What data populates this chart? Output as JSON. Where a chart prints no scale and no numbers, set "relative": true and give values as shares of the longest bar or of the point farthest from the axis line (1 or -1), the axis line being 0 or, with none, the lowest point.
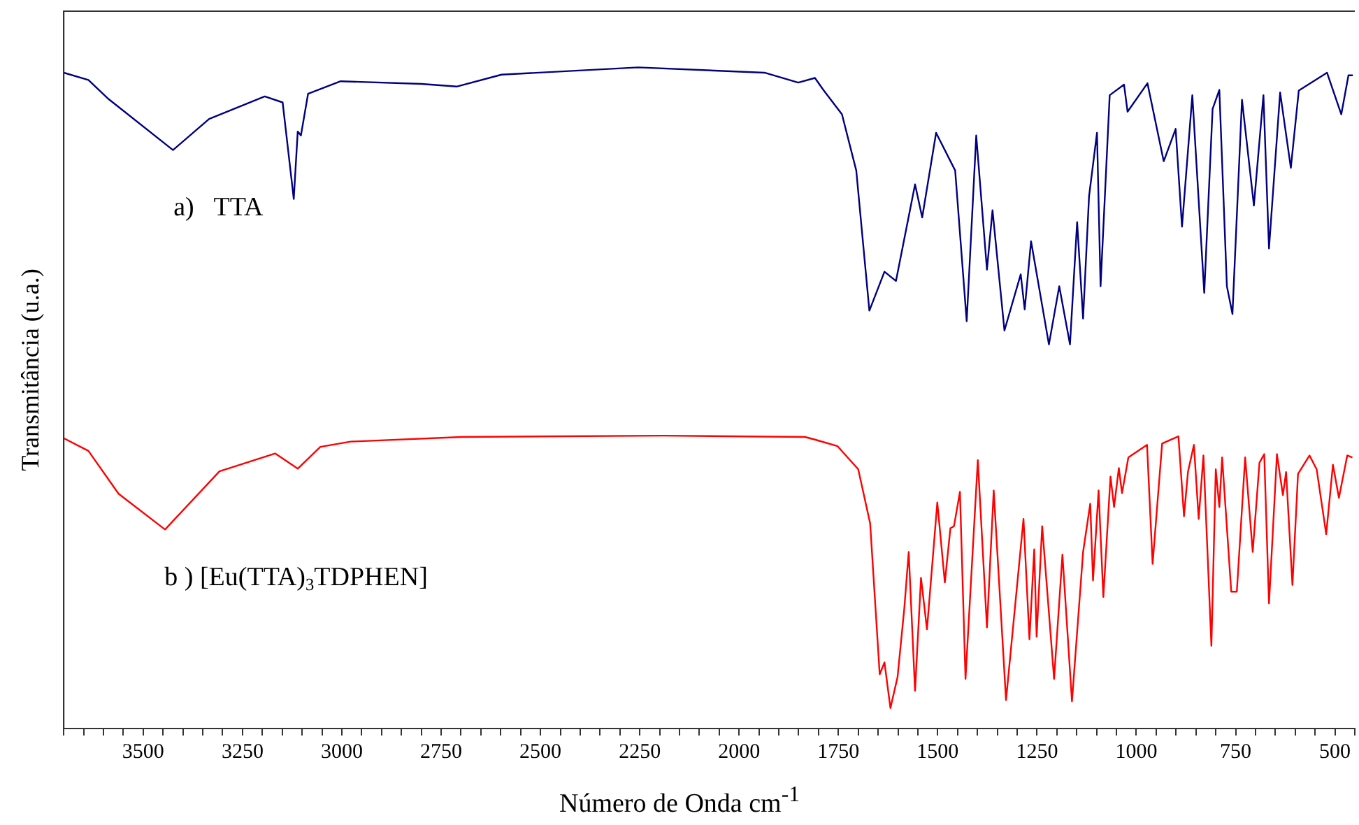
{
  "chart_data": {
    "type": "line",
    "xlabel": "Número de Onda cm$^{-1}$",
    "ylabel": "Transmitância (u.a.)",
    "relative": true,
    "xlim": [
      3700,
      450
    ],
    "xticks": [
      {
        "value": 3700,
        "label": null
      },
      {
        "value": 3650,
        "label": null
      },
      {
        "value": 3600,
        "label": null
      },
      {
        "value": 3550,
        "label": null
      },
      3500,
      {
        "value": 3450,
        "label": null
      },
      {
        "value": 3400,
        "label": null
      },
      {
        "value": 3350,
        "label": null
      },
      {
        "value": 3300,
        "label": null
      },
      3250,
      {
        "value": 3200,
        "label": null
      },
      {
        "value": 3150,
        "label": null
      },
      {
        "value": 3100,
        "label": null
      },
      {
        "value": 3050,
        "label": null
      },
      3000,
      {
        "value": 2950,
        "label": null
      },
      {
        "value": 2900,
        "label": null
      },
      {
        "value": 2850,
        "label": null
      },
      {
        "value": 2800,
        "label": null
      },
      2750,
      {
        "value": 2700,
        "label": null
      },
      {
        "value": 2650,
        "label": null
      },
      {
        "value": 2600,
        "label": null
      },
      {
        "value": 2550,
        "label": null
      },
      2500,
      {
        "value": 2450,
        "label": null
      },
      {
        "value": 2400,
        "label": null
      },
      {
        "value": 2350,
        "label": null
      },
      {
        "value": 2300,
        "label": null
      },
      2250,
      {
        "value": 2200,
        "label": null
      },
      {
        "value": 2150,
        "label": null
      },
      {
        "value": 2100,
        "label": null
      },
      {
        "value": 2050,
        "label": null
      },
      2000,
      {
        "value": 1950,
        "label": null
      },
      {
        "value": 1900,
        "label": null
      },
      {
        "value": 1850,
        "label": null
      },
      {
        "value": 1800,
        "label": null
      },
      1750,
      {
        "value": 1700,
        "label": null
      },
      {
        "value": 1650,
        "label": null
      },
      {
        "value": 1600,
        "label": null
      },
      {
        "value": 1550,
        "label": null
      },
      1500,
      {
        "value": 1450,
        "label": null
      },
      {
        "value": 1400,
        "label": null
      },
      {
        "value": 1350,
        "label": null
      },
      {
        "value": 1300,
        "label": null
      },
      1250,
      {
        "value": 1200,
        "label": null
      },
      {
        "value": 1150,
        "label": null
      },
      {
        "value": 1100,
        "label": null
      },
      {
        "value": 1050,
        "label": null
      },
      1000,
      {
        "value": 950,
        "label": null
      },
      {
        "value": 900,
        "label": null
      },
      {
        "value": 850,
        "label": null
      },
      {
        "value": 800,
        "label": null
      },
      750,
      {
        "value": 700,
        "label": null
      },
      {
        "value": 650,
        "label": null
      },
      {
        "value": 600,
        "label": null
      },
      {
        "value": 550,
        "label": null
      },
      500,
      {
        "value": 450,
        "label": null
      }
    ],
    "grid": false,
    "legend": false,
    "marker": "none",
    "line_style": "solid",
    "series": [
      {
        "name": "a)   TTA",
        "color": "#000080",
        "x": [
          3700,
          3638,
          3587,
          3425,
          3334,
          3194,
          3149,
          3121,
          3111,
          3103,
          3085,
          3003,
          2800,
          2711,
          2598,
          2254,
          1936,
          1851,
          1809,
          1788,
          1741,
          1705,
          1672,
          1634,
          1605,
          1557,
          1539,
          1504,
          1456,
          1427,
          1403,
          1376,
          1362,
          1332,
          1291,
          1281,
          1265,
          1220,
          1194,
          1167,
          1149,
          1134,
          1119,
          1099,
          1090,
          1067,
          1031,
          1022,
          972,
          931,
          901,
          885,
          859,
          829,
          808,
          791,
          772,
          758,
          734,
          704,
          680,
          666,
          638,
          611,
          591,
          520,
          484,
          466,
          455
        ],
        "values": [
          0.992,
          0.981,
          0.952,
          0.875,
          0.922,
          0.956,
          0.947,
          0.801,
          0.903,
          0.897,
          0.96,
          0.979,
          0.975,
          0.971,
          0.989,
          1.0,
          0.992,
          0.977,
          0.984,
          0.966,
          0.929,
          0.844,
          0.632,
          0.691,
          0.677,
          0.823,
          0.773,
          0.901,
          0.844,
          0.616,
          0.897,
          0.694,
          0.784,
          0.602,
          0.687,
          0.634,
          0.737,
          0.581,
          0.669,
          0.581,
          0.766,
          0.62,
          0.805,
          0.901,
          0.669,
          0.958,
          0.974,
          0.933,
          0.976,
          0.858,
          0.907,
          0.759,
          0.958,
          0.659,
          0.937,
          0.966,
          0.669,
          0.627,
          0.951,
          0.791,
          0.958,
          0.726,
          0.962,
          0.848,
          0.965,
          0.992,
          0.929,
          0.988,
          0.988
        ]
      },
      {
        "name": "b ) [Eu(TTA)$_{3}$TDPHEN]",
        "color": "#ff0000",
        "x": [
          3700,
          3638,
          3562,
          3445,
          3308,
          3168,
          3111,
          3054,
          2978,
          2698,
          2190,
          1834,
          1809,
          1752,
          1700,
          1670,
          1646,
          1634,
          1619,
          1601,
          1584,
          1573,
          1557,
          1542,
          1527,
          1501,
          1482,
          1468,
          1459,
          1444,
          1430,
          1399,
          1376,
          1359,
          1328,
          1284,
          1269,
          1257,
          1251,
          1237,
          1207,
          1186,
          1162,
          1134,
          1116,
          1109,
          1095,
          1083,
          1065,
          1056,
          1044,
          1036,
          1020,
          973,
          959,
          935,
          894,
          880,
          870,
          855,
          843,
          831,
          811,
          800,
          791,
          784,
          761,
          747,
          726,
          707,
          690,
          678,
          666,
          646,
          631,
          623,
          607,
          593,
          564,
          546,
          522,
          505,
          490,
          469,
          456
        ],
        "values": [
          0.439,
          0.42,
          0.355,
          0.301,
          0.389,
          0.416,
          0.393,
          0.426,
          0.434,
          0.441,
          0.443,
          0.441,
          0.437,
          0.427,
          0.392,
          0.31,
          0.082,
          0.1,
          0.031,
          0.078,
          0.182,
          0.267,
          0.057,
          0.228,
          0.15,
          0.342,
          0.221,
          0.303,
          0.306,
          0.358,
          0.075,
          0.406,
          0.153,
          0.36,
          0.043,
          0.317,
          0.135,
          0.271,
          0.139,
          0.306,
          0.075,
          0.263,
          0.041,
          0.267,
          0.34,
          0.224,
          0.36,
          0.199,
          0.381,
          0.335,
          0.394,
          0.356,
          0.41,
          0.429,
          0.249,
          0.431,
          0.442,
          0.321,
          0.388,
          0.429,
          0.317,
          0.413,
          0.125,
          0.392,
          0.335,
          0.41,
          0.207,
          0.207,
          0.41,
          0.267,
          0.402,
          0.415,
          0.189,
          0.415,
          0.353,
          0.388,
          0.217,
          0.385,
          0.413,
          0.392,
          0.294,
          0.399,
          0.349,
          0.413,
          0.41
        ]
      }
    ]
  }
}
